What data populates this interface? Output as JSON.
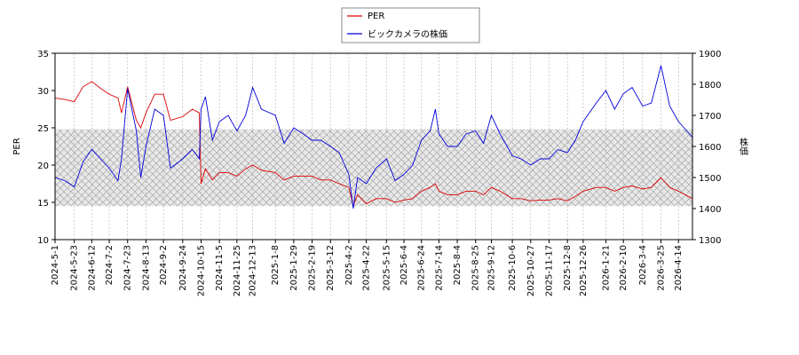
{
  "chart_data": {
    "type": "line",
    "y_label": "PER",
    "y2_label": "株価",
    "x": [
      "2024-5-1",
      "2024-5-12",
      "2024-5-23",
      "2024-6-2",
      "2024-6-12",
      "2024-6-22",
      "2024-7-2",
      "2024-7-12",
      "2024-7-16",
      "2024-7-23",
      "2024-8-2",
      "2024-8-7",
      "2024-8-13",
      "2024-8-23",
      "2024-9-2",
      "2024-9-10",
      "2024-9-24",
      "2024-10-5",
      "2024-10-13",
      "2024-10-15",
      "2024-10-20",
      "2024-10-28",
      "2024-11-5",
      "2024-11-15",
      "2024-11-25",
      "2024-12-5",
      "2024-12-13",
      "2024-12-23",
      "2025-1-8",
      "2025-1-18",
      "2025-1-29",
      "2025-2-9",
      "2025-2-19",
      "2025-3-1",
      "2025-3-12",
      "2025-3-22",
      "2025-4-2",
      "2025-4-7",
      "2025-4-12",
      "2025-4-22",
      "2025-5-3",
      "2025-5-15",
      "2025-5-25",
      "2025-6-4",
      "2025-6-14",
      "2025-6-24",
      "2025-7-4",
      "2025-7-10",
      "2025-7-14",
      "2025-7-24",
      "2025-8-4",
      "2025-8-14",
      "2025-8-25",
      "2025-9-3",
      "2025-9-12",
      "2025-9-22",
      "2025-10-6",
      "2025-10-16",
      "2025-10-27",
      "2025-11-7",
      "2025-11-17",
      "2025-11-27",
      "2025-12-8",
      "2025-12-17",
      "2025-12-26",
      "2026-1-10",
      "2026-1-21",
      "2026-1-31",
      "2026-2-10",
      "2026-2-20",
      "2026-3-4",
      "2026-3-14",
      "2026-3-25",
      "2026-4-4",
      "2026-4-14",
      "2026-4-30"
    ],
    "series": [
      {
        "name": "PER",
        "color": "#dd0000",
        "axis": "y",
        "values": [
          29,
          28.8,
          28.5,
          30.5,
          31.2,
          30.3,
          29.5,
          29,
          27,
          30.5,
          26,
          25,
          27,
          29.5,
          29.5,
          26,
          26.5,
          27.5,
          27,
          17.5,
          19.5,
          18,
          19,
          19,
          18.5,
          19.5,
          20,
          19.3,
          19,
          18,
          18.5,
          18.5,
          18.5,
          18,
          18,
          17.5,
          17,
          14.5,
          16,
          14.8,
          15.5,
          15.5,
          15,
          15.3,
          15.5,
          16.5,
          17,
          17.5,
          16.5,
          16,
          16,
          16.5,
          16.5,
          16,
          17,
          16.5,
          15.5,
          15.5,
          15.2,
          15.3,
          15.3,
          15.5,
          15.2,
          15.8,
          16.5,
          17,
          17,
          16.5,
          17,
          17.2,
          16.8,
          17,
          18.3,
          17,
          16.5,
          15.5
        ]
      },
      {
        "name": "ビックカメラの株価",
        "color": "#0000dd",
        "axis": "y2",
        "values": [
          1500,
          1490,
          1470,
          1550,
          1590,
          1560,
          1530,
          1490,
          1560,
          1786,
          1650,
          1500,
          1600,
          1720,
          1700,
          1530,
          1560,
          1590,
          1560,
          1720,
          1760,
          1620,
          1680,
          1700,
          1650,
          1700,
          1790,
          1720,
          1700,
          1610,
          1660,
          1640,
          1620,
          1620,
          1600,
          1580,
          1510,
          1400,
          1500,
          1480,
          1530,
          1560,
          1490,
          1510,
          1540,
          1620,
          1650,
          1720,
          1640,
          1600,
          1600,
          1640,
          1650,
          1610,
          1700,
          1640,
          1570,
          1560,
          1540,
          1560,
          1560,
          1590,
          1580,
          1620,
          1680,
          1740,
          1780,
          1720,
          1770,
          1790,
          1730,
          1740,
          1860,
          1730,
          1680,
          1630
        ]
      }
    ],
    "xlim": [
      "2024-5-1",
      "2026-4-30"
    ],
    "xticks": [
      "2024-5-1",
      "2024-5-23",
      "2024-6-12",
      "2024-7-2",
      "2024-7-23",
      "2024-8-13",
      "2024-9-2",
      "2024-9-24",
      "2024-10-15",
      "2024-11-5",
      "2024-11-25",
      "2024-12-13",
      "2025-1-8",
      "2025-1-29",
      "2025-2-19",
      "2025-3-12",
      "2025-4-2",
      "2025-4-22",
      "2025-5-15",
      "2025-6-4",
      "2025-6-24",
      "2025-7-14",
      "2025-8-4",
      "2025-8-25",
      "2025-9-12",
      "2025-10-6",
      "2025-10-27",
      "2025-11-17",
      "2025-12-8",
      "2025-12-26",
      "2026-1-21",
      "2026-2-10",
      "2026-3-4",
      "2026-3-25",
      "2026-4-14"
    ],
    "ylim": [
      10,
      35
    ],
    "yticks": [
      10,
      15,
      20,
      25,
      30,
      35
    ],
    "y2lim": [
      1300,
      1900
    ],
    "y2ticks": [
      1300,
      1400,
      1500,
      1600,
      1700,
      1800,
      1900
    ],
    "shaded_range": [
      14.5,
      24.8
    ],
    "legend": "top"
  }
}
